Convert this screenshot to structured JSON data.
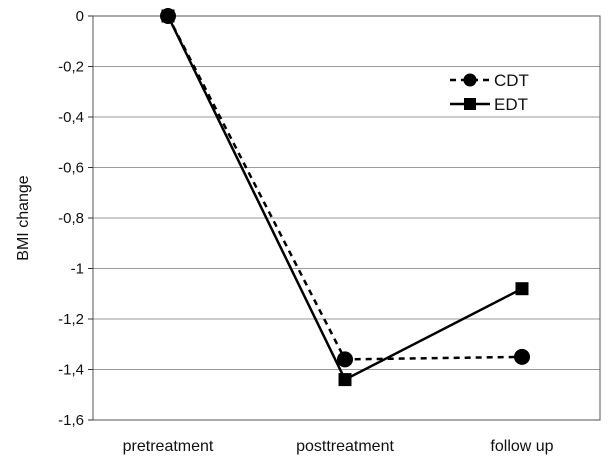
{
  "chart_data": {
    "type": "line",
    "title": "",
    "xlabel": "",
    "ylabel": "BMI change",
    "categories": [
      "pretreatment",
      "posttreatment",
      "follow up"
    ],
    "ylim": [
      -1.6,
      0
    ],
    "yticks": [
      0,
      -0.2,
      -0.4,
      -0.6,
      -0.8,
      -1,
      -1.2,
      -1.4,
      -1.6
    ],
    "ytick_labels": [
      "0",
      "-0,2",
      "-0,4",
      "-0,6",
      "-0,8",
      "-1",
      "-1,2",
      "-1,4",
      "-1,6"
    ],
    "grid": true,
    "legend_position": "top-right",
    "series": [
      {
        "name": "CDT",
        "values": [
          0,
          -1.36,
          -1.35
        ],
        "marker": "circle",
        "line_style": "dashed",
        "color": "#000000"
      },
      {
        "name": "EDT",
        "values": [
          0,
          -1.44,
          -1.08
        ],
        "marker": "square",
        "line_style": "solid",
        "color": "#000000"
      }
    ]
  }
}
